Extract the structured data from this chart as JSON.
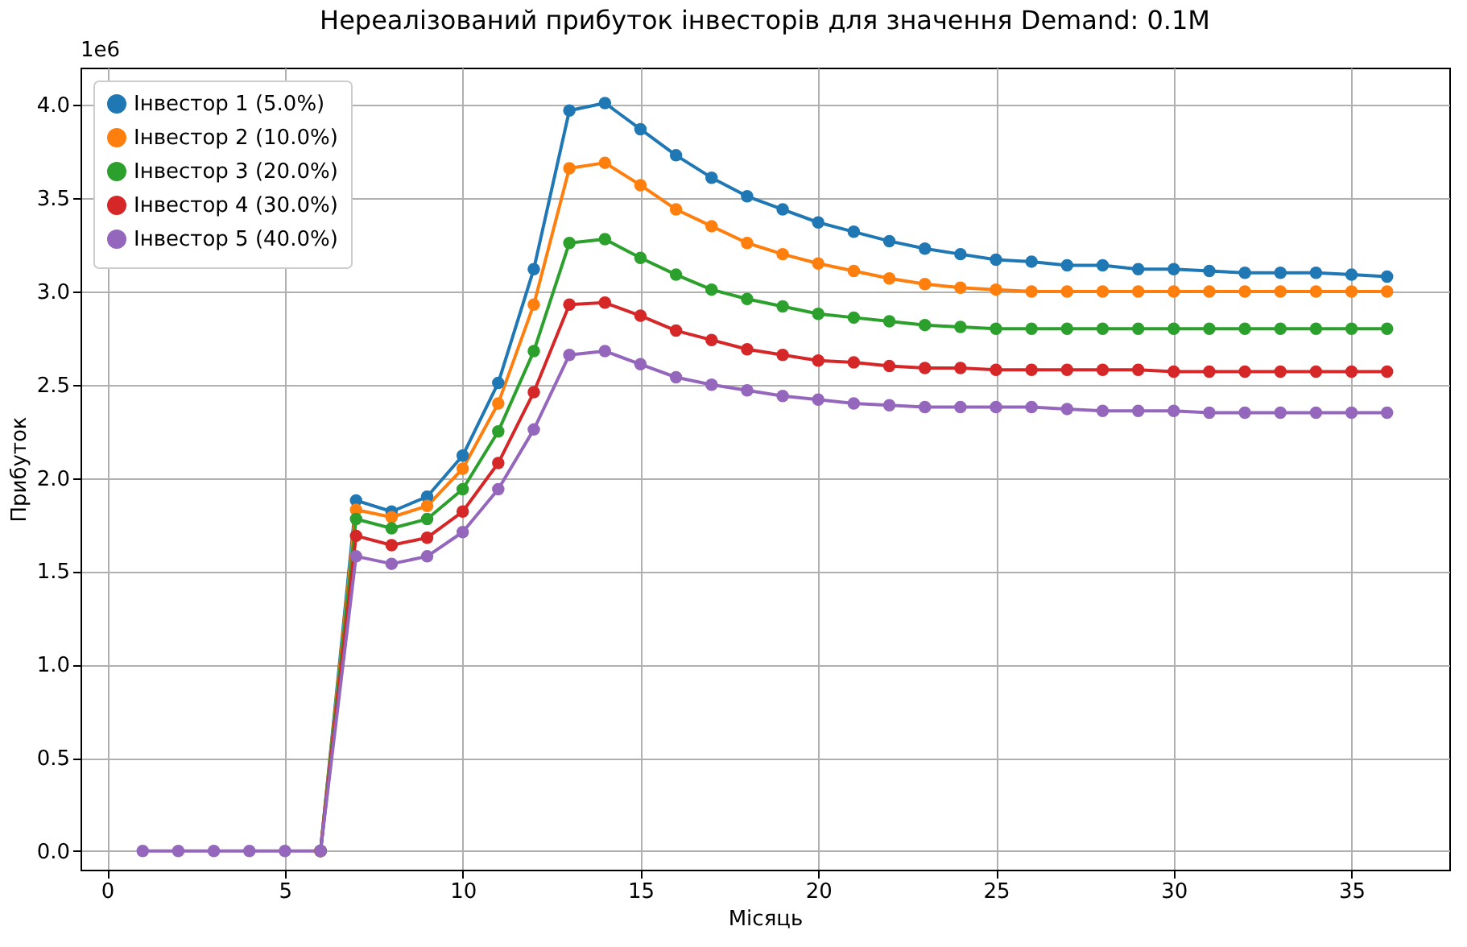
{
  "chart_data": {
    "type": "line",
    "title": "Нереалізований прибуток інвесторів для значення Demand: 0.1M",
    "xlabel": "Місяць",
    "ylabel": "Прибуток",
    "annotations": [
      "1e6"
    ],
    "x": [
      1,
      2,
      3,
      4,
      5,
      6,
      7,
      8,
      9,
      10,
      11,
      12,
      13,
      14,
      15,
      16,
      17,
      18,
      19,
      20,
      21,
      22,
      23,
      24,
      25,
      26,
      27,
      28,
      29,
      30,
      31,
      32,
      33,
      34,
      35,
      36
    ],
    "series": [
      {
        "name": "Інвестор 1 (5.0%)",
        "color": "#1f77b4",
        "values": [
          null,
          null,
          null,
          null,
          null,
          0,
          1.88,
          1.82,
          1.9,
          2.12,
          2.51,
          3.12,
          3.97,
          4.01,
          3.87,
          3.73,
          3.61,
          3.51,
          3.44,
          3.37,
          3.32,
          3.27,
          3.23,
          3.2,
          3.17,
          3.16,
          3.14,
          3.14,
          3.12,
          3.12,
          3.11,
          3.1,
          3.1,
          3.1,
          3.09,
          3.08
        ]
      },
      {
        "name": "Інвестор 2 (10.0%)",
        "color": "#ff7f0e",
        "values": [
          null,
          null,
          null,
          null,
          null,
          0,
          1.83,
          1.79,
          1.85,
          2.05,
          2.4,
          2.93,
          3.66,
          3.69,
          3.57,
          3.44,
          3.35,
          3.26,
          3.2,
          3.15,
          3.11,
          3.07,
          3.04,
          3.02,
          3.01,
          3.0,
          3.0,
          3.0,
          3.0,
          3.0,
          3.0,
          3.0,
          3.0,
          3.0,
          3.0,
          3.0
        ]
      },
      {
        "name": "Інвестор 3 (20.0%)",
        "color": "#2ca02c",
        "values": [
          null,
          null,
          null,
          null,
          null,
          0,
          1.78,
          1.73,
          1.78,
          1.94,
          2.25,
          2.68,
          3.26,
          3.28,
          3.18,
          3.09,
          3.01,
          2.96,
          2.92,
          2.88,
          2.86,
          2.84,
          2.82,
          2.81,
          2.8,
          2.8,
          2.8,
          2.8,
          2.8,
          2.8,
          2.8,
          2.8,
          2.8,
          2.8,
          2.8,
          2.8
        ]
      },
      {
        "name": "Інвестор 4 (30.0%)",
        "color": "#d62728",
        "values": [
          null,
          null,
          null,
          null,
          null,
          0,
          1.69,
          1.64,
          1.68,
          1.82,
          2.08,
          2.46,
          2.93,
          2.94,
          2.87,
          2.79,
          2.74,
          2.69,
          2.66,
          2.63,
          2.62,
          2.6,
          2.59,
          2.59,
          2.58,
          2.58,
          2.58,
          2.58,
          2.58,
          2.57,
          2.57,
          2.57,
          2.57,
          2.57,
          2.57,
          2.57
        ]
      },
      {
        "name": "Інвестор 5 (40.0%)",
        "color": "#9467bd",
        "values": [
          0,
          0,
          0,
          0,
          0,
          0,
          1.58,
          1.54,
          1.58,
          1.71,
          1.94,
          2.26,
          2.66,
          2.68,
          2.61,
          2.54,
          2.5,
          2.47,
          2.44,
          2.42,
          2.4,
          2.39,
          2.38,
          2.38,
          2.38,
          2.38,
          2.37,
          2.36,
          2.36,
          2.36,
          2.35,
          2.35,
          2.35,
          2.35,
          2.35,
          2.35
        ]
      }
    ],
    "xlim": [
      -0.75,
      37.75
    ],
    "xticks": [
      0,
      5,
      10,
      15,
      20,
      25,
      30,
      35
    ],
    "ylim": [
      -0.1,
      4.2
    ],
    "yticks": [
      {
        "value": 0,
        "label": "0.0"
      },
      {
        "value": 0.5,
        "label": "0.5"
      },
      {
        "value": 1,
        "label": "1.0"
      },
      {
        "value": 1.5,
        "label": "1.5"
      },
      {
        "value": 2,
        "label": "2.0"
      },
      {
        "value": 2.5,
        "label": "2.5"
      },
      {
        "value": 3,
        "label": "3.0"
      },
      {
        "value": 3.5,
        "label": "3.5"
      },
      {
        "value": 4,
        "label": "4.0"
      }
    ],
    "grid": true,
    "legend": "top left",
    "marker": "circle",
    "line_style": "solid"
  }
}
